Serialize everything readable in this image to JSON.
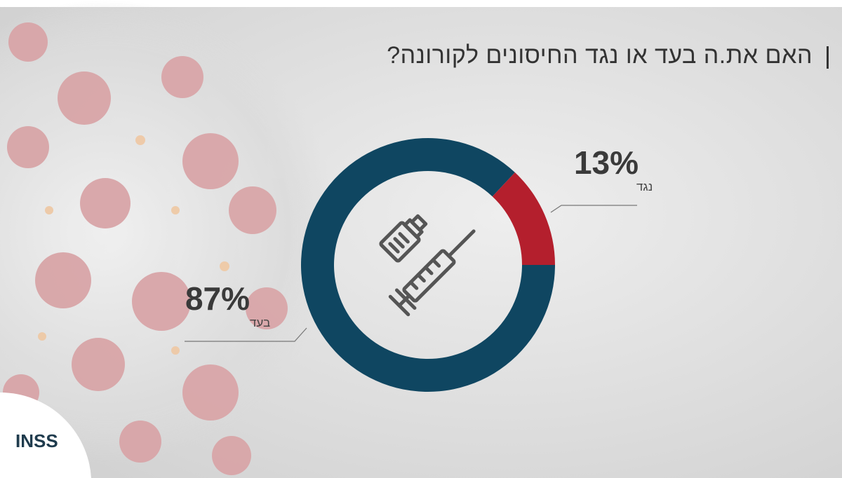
{
  "chart_data": {
    "type": "donut",
    "title": "האם את.ה בעד או נגד החיסונים לקורונה?",
    "categories": [
      "בעד",
      "נגד"
    ],
    "values": [
      87,
      13
    ],
    "value_labels": [
      "87%",
      "13%"
    ],
    "colors": [
      "#0f4661",
      "#b41f2d"
    ],
    "logo": "INSS"
  }
}
